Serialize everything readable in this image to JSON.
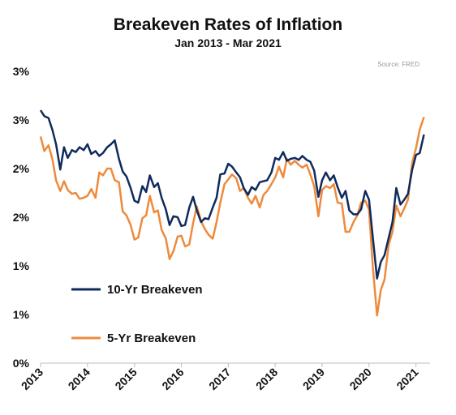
{
  "chart_data": {
    "type": "line",
    "title": "Breakeven Rates of Inflation",
    "subtitle": "Jan 2013 - Mar 2021",
    "source": "Source: FRED",
    "xlabel": "",
    "ylabel": "",
    "xlim": [
      2013.0,
      2021.3
    ],
    "ylim": [
      0.0,
      3.0
    ],
    "grid": false,
    "legend_position": "lower-left",
    "y_tick_values": [
      0,
      0.5,
      1.0,
      1.5,
      2.0,
      2.5,
      3.0
    ],
    "y_tick_labels": [
      "0%",
      "1%",
      "1%",
      "2%",
      "2%",
      "3%",
      "3%"
    ],
    "x_tick_values": [
      2013,
      2014,
      2015,
      2016,
      2017,
      2018,
      2019,
      2020,
      2021
    ],
    "x_tick_labels": [
      "2013",
      "2014",
      "2015",
      "2016",
      "2017",
      "2018",
      "2019",
      "2020",
      "2021"
    ],
    "series": [
      {
        "name": "10-Yr Breakeven",
        "color": "#0f2a5c",
        "points": [
          [
            2013.0,
            2.6
          ],
          [
            2013.08,
            2.54
          ],
          [
            2013.17,
            2.52
          ],
          [
            2013.25,
            2.4
          ],
          [
            2013.33,
            2.25
          ],
          [
            2013.42,
            1.99
          ],
          [
            2013.5,
            2.22
          ],
          [
            2013.58,
            2.11
          ],
          [
            2013.67,
            2.19
          ],
          [
            2013.75,
            2.17
          ],
          [
            2013.83,
            2.22
          ],
          [
            2013.92,
            2.19
          ],
          [
            2014.0,
            2.25
          ],
          [
            2014.08,
            2.15
          ],
          [
            2014.17,
            2.18
          ],
          [
            2014.25,
            2.13
          ],
          [
            2014.33,
            2.16
          ],
          [
            2014.42,
            2.22
          ],
          [
            2014.5,
            2.25
          ],
          [
            2014.58,
            2.29
          ],
          [
            2014.67,
            2.1
          ],
          [
            2014.75,
            1.97
          ],
          [
            2014.83,
            1.92
          ],
          [
            2014.92,
            1.8
          ],
          [
            2015.0,
            1.67
          ],
          [
            2015.08,
            1.65
          ],
          [
            2015.17,
            1.82
          ],
          [
            2015.25,
            1.76
          ],
          [
            2015.33,
            1.93
          ],
          [
            2015.42,
            1.81
          ],
          [
            2015.5,
            1.85
          ],
          [
            2015.58,
            1.7
          ],
          [
            2015.67,
            1.58
          ],
          [
            2015.75,
            1.42
          ],
          [
            2015.83,
            1.51
          ],
          [
            2015.92,
            1.5
          ],
          [
            2016.0,
            1.41
          ],
          [
            2016.08,
            1.42
          ],
          [
            2016.17,
            1.6
          ],
          [
            2016.25,
            1.71
          ],
          [
            2016.33,
            1.57
          ],
          [
            2016.42,
            1.45
          ],
          [
            2016.5,
            1.49
          ],
          [
            2016.58,
            1.48
          ],
          [
            2016.67,
            1.6
          ],
          [
            2016.75,
            1.7
          ],
          [
            2016.83,
            1.94
          ],
          [
            2016.92,
            1.95
          ],
          [
            2017.0,
            2.05
          ],
          [
            2017.08,
            2.02
          ],
          [
            2017.17,
            1.96
          ],
          [
            2017.25,
            1.91
          ],
          [
            2017.33,
            1.8
          ],
          [
            2017.42,
            1.73
          ],
          [
            2017.5,
            1.81
          ],
          [
            2017.58,
            1.78
          ],
          [
            2017.67,
            1.86
          ],
          [
            2017.75,
            1.87
          ],
          [
            2017.83,
            1.88
          ],
          [
            2017.92,
            1.96
          ],
          [
            2018.0,
            2.11
          ],
          [
            2018.08,
            2.09
          ],
          [
            2018.17,
            2.17
          ],
          [
            2018.25,
            2.08
          ],
          [
            2018.33,
            2.1
          ],
          [
            2018.42,
            2.11
          ],
          [
            2018.5,
            2.09
          ],
          [
            2018.58,
            2.13
          ],
          [
            2018.67,
            2.09
          ],
          [
            2018.75,
            2.07
          ],
          [
            2018.83,
            1.98
          ],
          [
            2018.92,
            1.71
          ],
          [
            2019.0,
            1.88
          ],
          [
            2019.08,
            1.96
          ],
          [
            2019.17,
            1.88
          ],
          [
            2019.25,
            1.93
          ],
          [
            2019.33,
            1.81
          ],
          [
            2019.42,
            1.7
          ],
          [
            2019.5,
            1.77
          ],
          [
            2019.58,
            1.57
          ],
          [
            2019.67,
            1.53
          ],
          [
            2019.75,
            1.53
          ],
          [
            2019.83,
            1.58
          ],
          [
            2019.92,
            1.77
          ],
          [
            2020.0,
            1.68
          ],
          [
            2020.08,
            1.3
          ],
          [
            2020.17,
            0.87
          ],
          [
            2020.25,
            1.04
          ],
          [
            2020.33,
            1.11
          ],
          [
            2020.42,
            1.29
          ],
          [
            2020.5,
            1.45
          ],
          [
            2020.58,
            1.8
          ],
          [
            2020.67,
            1.63
          ],
          [
            2020.75,
            1.68
          ],
          [
            2020.83,
            1.74
          ],
          [
            2020.92,
            1.99
          ],
          [
            2021.0,
            2.14
          ],
          [
            2021.08,
            2.16
          ],
          [
            2021.17,
            2.35
          ]
        ]
      },
      {
        "name": "5-Yr Breakeven",
        "color": "#ee8a3c",
        "points": [
          [
            2013.0,
            2.33
          ],
          [
            2013.08,
            2.18
          ],
          [
            2013.17,
            2.24
          ],
          [
            2013.25,
            2.1
          ],
          [
            2013.33,
            1.88
          ],
          [
            2013.42,
            1.77
          ],
          [
            2013.5,
            1.87
          ],
          [
            2013.58,
            1.78
          ],
          [
            2013.67,
            1.74
          ],
          [
            2013.75,
            1.75
          ],
          [
            2013.83,
            1.69
          ],
          [
            2013.92,
            1.7
          ],
          [
            2014.0,
            1.72
          ],
          [
            2014.08,
            1.79
          ],
          [
            2014.17,
            1.7
          ],
          [
            2014.25,
            1.96
          ],
          [
            2014.33,
            1.93
          ],
          [
            2014.42,
            2.0
          ],
          [
            2014.5,
            2.0
          ],
          [
            2014.58,
            1.88
          ],
          [
            2014.67,
            1.86
          ],
          [
            2014.75,
            1.56
          ],
          [
            2014.83,
            1.52
          ],
          [
            2014.92,
            1.42
          ],
          [
            2015.0,
            1.27
          ],
          [
            2015.08,
            1.29
          ],
          [
            2015.17,
            1.49
          ],
          [
            2015.25,
            1.52
          ],
          [
            2015.33,
            1.72
          ],
          [
            2015.42,
            1.55
          ],
          [
            2015.5,
            1.57
          ],
          [
            2015.58,
            1.37
          ],
          [
            2015.67,
            1.28
          ],
          [
            2015.75,
            1.07
          ],
          [
            2015.83,
            1.15
          ],
          [
            2015.92,
            1.3
          ],
          [
            2016.0,
            1.31
          ],
          [
            2016.08,
            1.2
          ],
          [
            2016.17,
            1.22
          ],
          [
            2016.25,
            1.44
          ],
          [
            2016.33,
            1.61
          ],
          [
            2016.42,
            1.46
          ],
          [
            2016.5,
            1.38
          ],
          [
            2016.58,
            1.32
          ],
          [
            2016.67,
            1.28
          ],
          [
            2016.75,
            1.45
          ],
          [
            2016.83,
            1.65
          ],
          [
            2016.92,
            1.84
          ],
          [
            2017.0,
            1.89
          ],
          [
            2017.08,
            1.94
          ],
          [
            2017.17,
            1.9
          ],
          [
            2017.25,
            1.77
          ],
          [
            2017.33,
            1.8
          ],
          [
            2017.42,
            1.7
          ],
          [
            2017.5,
            1.64
          ],
          [
            2017.58,
            1.72
          ],
          [
            2017.67,
            1.6
          ],
          [
            2017.75,
            1.73
          ],
          [
            2017.83,
            1.77
          ],
          [
            2017.92,
            1.84
          ],
          [
            2018.0,
            1.91
          ],
          [
            2018.08,
            2.02
          ],
          [
            2018.17,
            1.91
          ],
          [
            2018.25,
            2.1
          ],
          [
            2018.33,
            2.04
          ],
          [
            2018.42,
            2.08
          ],
          [
            2018.5,
            2.04
          ],
          [
            2018.58,
            2.01
          ],
          [
            2018.67,
            2.04
          ],
          [
            2018.75,
            1.94
          ],
          [
            2018.83,
            1.82
          ],
          [
            2018.92,
            1.51
          ],
          [
            2019.0,
            1.78
          ],
          [
            2019.08,
            1.82
          ],
          [
            2019.17,
            1.8
          ],
          [
            2019.25,
            1.84
          ],
          [
            2019.33,
            1.65
          ],
          [
            2019.42,
            1.64
          ],
          [
            2019.5,
            1.35
          ],
          [
            2019.58,
            1.35
          ],
          [
            2019.67,
            1.45
          ],
          [
            2019.75,
            1.52
          ],
          [
            2019.83,
            1.65
          ],
          [
            2019.92,
            1.67
          ],
          [
            2020.0,
            1.58
          ],
          [
            2020.08,
            1.0
          ],
          [
            2020.17,
            0.49
          ],
          [
            2020.25,
            0.75
          ],
          [
            2020.33,
            0.86
          ],
          [
            2020.42,
            1.22
          ],
          [
            2020.5,
            1.35
          ],
          [
            2020.58,
            1.62
          ],
          [
            2020.67,
            1.51
          ],
          [
            2020.75,
            1.59
          ],
          [
            2020.83,
            1.68
          ],
          [
            2020.92,
            2.06
          ],
          [
            2021.0,
            2.21
          ],
          [
            2021.08,
            2.4
          ],
          [
            2021.17,
            2.53
          ]
        ]
      }
    ]
  }
}
